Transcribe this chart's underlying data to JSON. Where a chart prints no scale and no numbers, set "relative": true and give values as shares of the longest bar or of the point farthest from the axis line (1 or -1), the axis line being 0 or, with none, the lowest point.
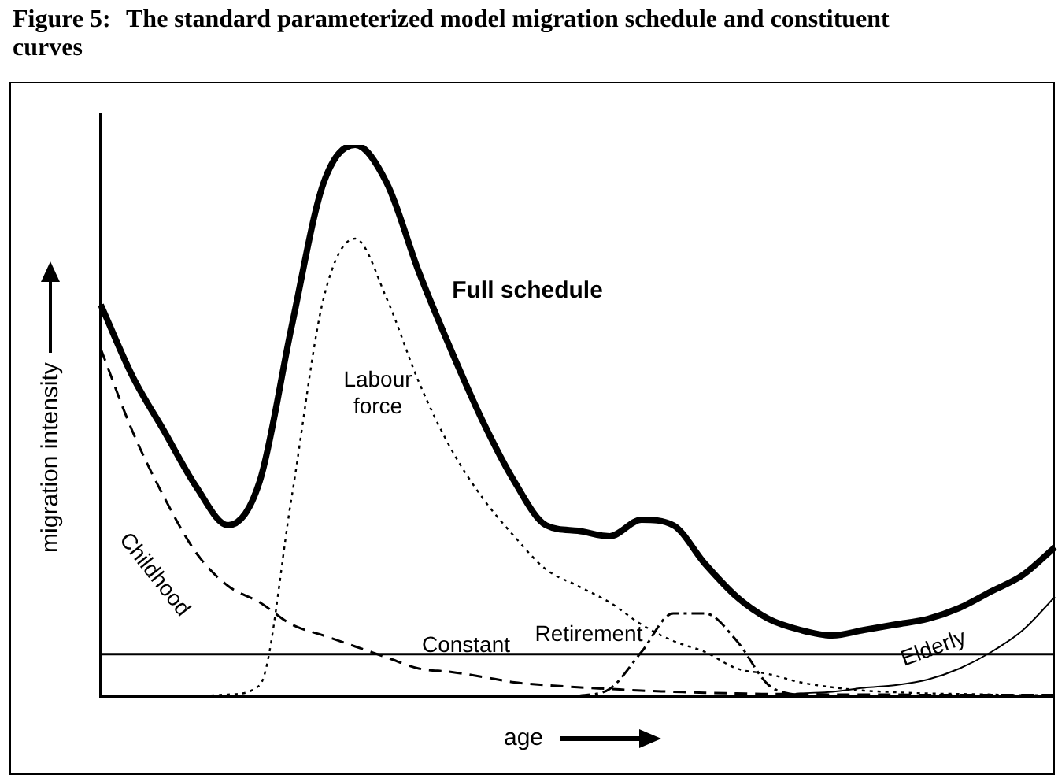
{
  "chart_data": {
    "type": "line",
    "title": "Figure 5:\tThe standard parameterized model migration schedule and constituent curves",
    "xlabel": "age",
    "ylabel": "migration intensity",
    "relative": true,
    "legend": false,
    "marker": "none",
    "categories": [
      null,
      null,
      null,
      null,
      null,
      null,
      null,
      null,
      null,
      null,
      null,
      null,
      null,
      null,
      null,
      null,
      null,
      null,
      null,
      null,
      null,
      null,
      null,
      null,
      null,
      null,
      null,
      null,
      null,
      null,
      null
    ],
    "series": [
      {
        "name": "Full schedule",
        "color": "#000000",
        "line_style": "solid",
        "values": [
          0.71,
          0.58,
          0.48,
          0.38,
          0.31,
          0.39,
          0.67,
          0.93,
          1.0,
          0.93,
          0.77,
          0.63,
          0.5,
          0.39,
          0.31,
          0.3,
          0.29,
          0.32,
          0.31,
          0.24,
          0.18,
          0.14,
          0.12,
          0.11,
          0.12,
          0.13,
          0.14,
          0.16,
          0.19,
          0.22,
          0.27
        ]
      },
      {
        "name": "Labour force",
        "color": "#000000",
        "line_style": "dotted",
        "values": [
          0,
          0,
          0,
          0,
          0.003,
          0.02,
          0.36,
          0.72,
          0.83,
          0.72,
          0.57,
          0.45,
          0.36,
          0.29,
          0.23,
          0.2,
          0.17,
          0.13,
          0.1,
          0.08,
          0.05,
          0.04,
          0.025,
          0.016,
          0.01,
          0.007,
          0.005,
          0.004,
          0.003,
          0.002,
          0.002
        ]
      },
      {
        "name": "Childhood",
        "color": "#000000",
        "line_style": "dashed",
        "values": [
          0.63,
          0.48,
          0.36,
          0.26,
          0.2,
          0.17,
          0.13,
          0.11,
          0.09,
          0.07,
          0.05,
          0.044,
          0.035,
          0.025,
          0.02,
          0.016,
          0.013,
          0.01,
          0.008,
          0.006,
          0.005,
          0.004,
          0.004,
          0.003,
          0.003,
          0.003,
          0.002,
          0.002,
          0.002,
          0.002,
          0.002
        ]
      },
      {
        "name": "Constant",
        "color": "#000000",
        "line_style": "solid",
        "values": [
          0.076,
          0.076,
          0.076,
          0.076,
          0.076,
          0.076,
          0.076,
          0.076,
          0.076,
          0.076,
          0.076,
          0.076,
          0.076,
          0.076,
          0.076,
          0.076,
          0.076,
          0.076,
          0.076,
          0.076,
          0.076,
          0.076,
          0.076,
          0.076,
          0.076,
          0.076,
          0.076,
          0.076,
          0.076,
          0.076,
          0.076
        ]
      },
      {
        "name": "Retirement",
        "color": "#000000",
        "line_style": "dashed",
        "values": [
          null,
          null,
          null,
          null,
          null,
          null,
          null,
          null,
          null,
          null,
          null,
          null,
          null,
          null,
          null,
          0,
          0.013,
          0.08,
          0.15,
          0.15,
          0.1,
          0.02,
          0,
          null,
          null,
          null,
          null,
          null,
          null,
          null,
          null
        ]
      },
      {
        "name": "Elderly",
        "color": "#000000",
        "line_style": "solid",
        "values": [
          null,
          null,
          null,
          null,
          null,
          null,
          null,
          null,
          null,
          null,
          null,
          null,
          null,
          null,
          null,
          null,
          null,
          null,
          null,
          null,
          null,
          0,
          0.005,
          0.008,
          0.015,
          0.02,
          0.03,
          0.05,
          0.08,
          0.12,
          0.18
        ]
      }
    ]
  }
}
